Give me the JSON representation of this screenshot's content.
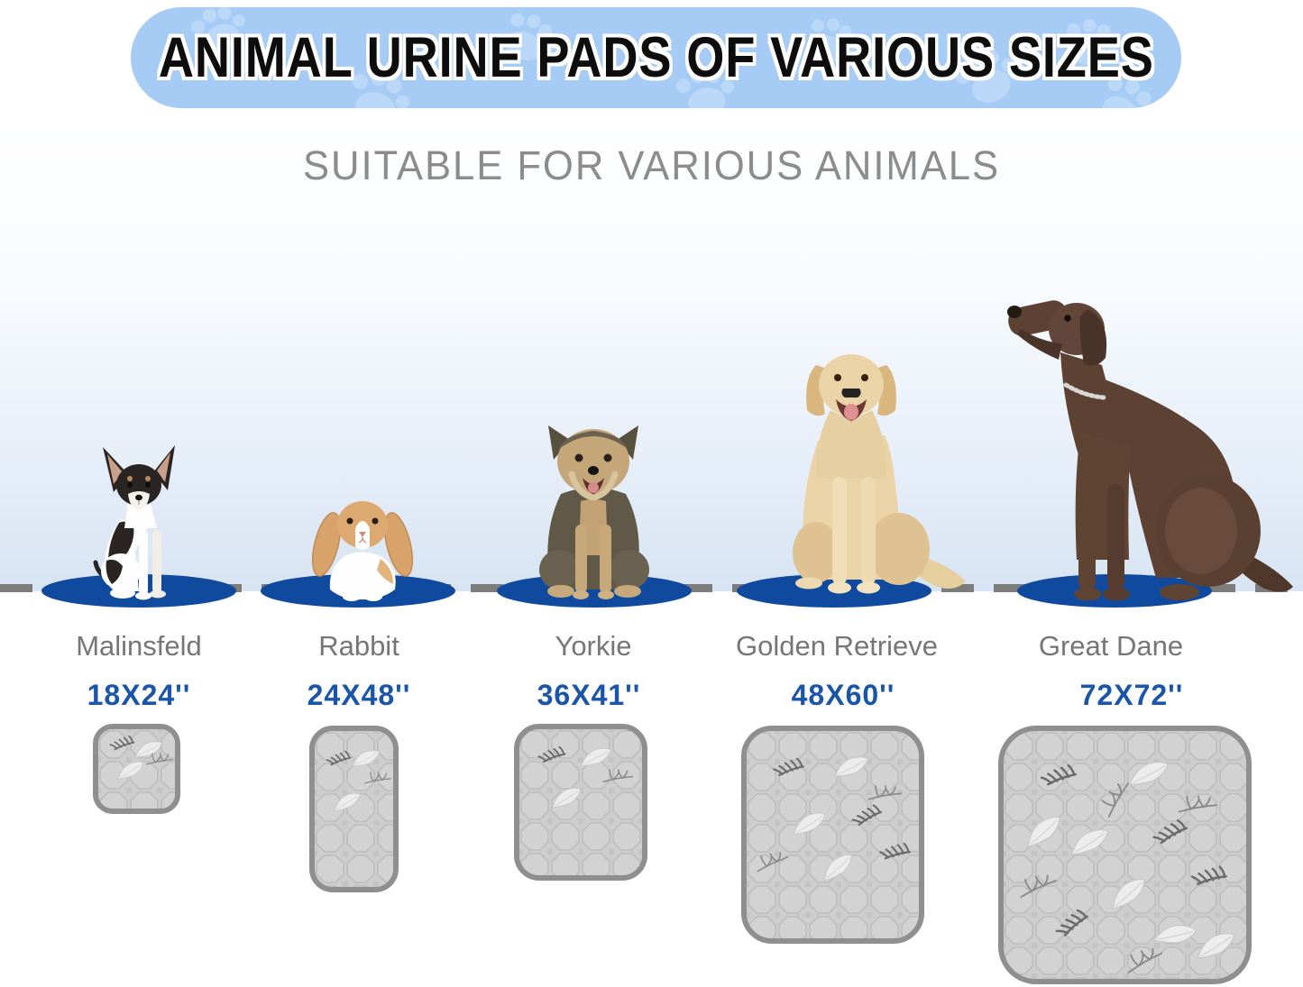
{
  "banner": {
    "title": "ANIMAL URINE PADS OF VARIOUS SIZES",
    "decoration": "paw-print-icon"
  },
  "subtitle": "SUITABLE FOR VARIOUS ANIMALS",
  "columns": [
    {
      "animal": "Malinsfeld",
      "pad_size": "18X24''",
      "illustration": "chihuahua-dog"
    },
    {
      "animal": "Rabbit",
      "pad_size": "24X48''",
      "illustration": "lop-rabbit"
    },
    {
      "animal": "Yorkie",
      "pad_size": "36X41''",
      "illustration": "yorkshire-terrier-dog"
    },
    {
      "animal": "Golden Retrieve",
      "pad_size": "48X60''",
      "illustration": "golden-retriever-dog"
    },
    {
      "animal": "Great Dane",
      "pad_size": "72X72''",
      "illustration": "great-dane-dog"
    }
  ],
  "colors": {
    "banner_bg": "#a6cbf4",
    "banner_paw": "#c0dbf9",
    "title_text": "#0d0d0d",
    "subtitle_text": "#8c8c8c",
    "label_text": "#767676",
    "size_text": "#1b55a7",
    "oval": "#0f4a9f",
    "baseline": "#7c7c7c",
    "pad_fill": "#cdcdcd",
    "pad_border": "#8f8f8f"
  }
}
